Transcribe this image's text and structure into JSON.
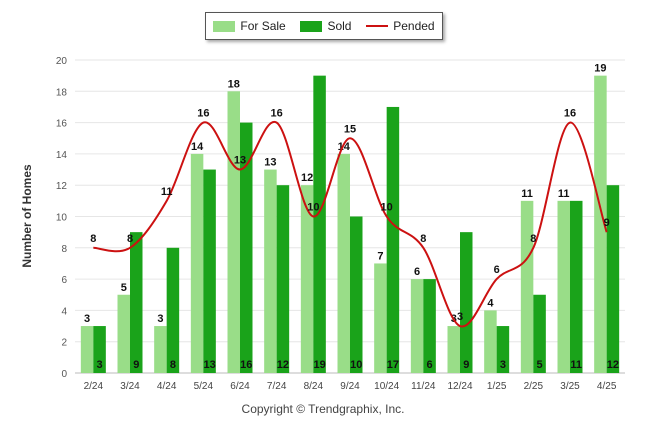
{
  "chart_data": {
    "type": "bar",
    "categories": [
      "2/24",
      "3/24",
      "4/24",
      "5/24",
      "6/24",
      "7/24",
      "8/24",
      "9/24",
      "10/24",
      "11/24",
      "12/24",
      "1/25",
      "2/25",
      "3/25",
      "4/25"
    ],
    "series": [
      {
        "name": "For Sale",
        "type": "bar",
        "values": [
          3,
          5,
          3,
          14,
          18,
          13,
          12,
          14,
          7,
          6,
          3,
          4,
          11,
          11,
          19
        ],
        "color": "#99dd88"
      },
      {
        "name": "Sold",
        "type": "bar",
        "values": [
          3,
          9,
          8,
          13,
          16,
          12,
          19,
          10,
          17,
          6,
          9,
          3,
          5,
          11,
          12
        ],
        "color": "#1aa31a"
      },
      {
        "name": "Pended",
        "type": "line",
        "values": [
          8,
          8,
          11,
          16,
          13,
          16,
          10,
          15,
          10,
          8,
          3,
          6,
          8,
          16,
          9
        ],
        "color": "#cc1111"
      }
    ],
    "ylabel": "Number of Homes",
    "ylim": [
      0,
      20
    ],
    "yticks": [
      0,
      2,
      4,
      6,
      8,
      10,
      12,
      14,
      16,
      18,
      20
    ],
    "grid": true,
    "legend": "top-center"
  },
  "footer": {
    "copyright": "Copyright © Trendgraphix, Inc."
  }
}
